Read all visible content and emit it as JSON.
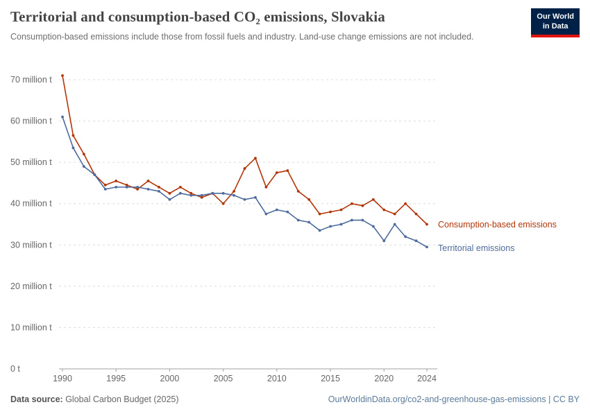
{
  "header": {
    "title": "Territorial and consumption-based CO₂ emissions, Slovakia",
    "subtitle": "Consumption-based emissions include those from fossil fuels and industry. Land-use change emissions are not included.",
    "logo": {
      "line1": "Our World",
      "line2": "in Data",
      "bg": "#002147",
      "accent": "#e3120b"
    }
  },
  "chart_data": {
    "type": "line",
    "title": "Territorial and consumption-based CO₂ emissions, Slovakia",
    "xlabel": "",
    "ylabel": "",
    "ylim": [
      0,
      70
    ],
    "grid": "dashed horizontal",
    "legend_position": "right-of-line-ends",
    "x": [
      1990,
      1991,
      1992,
      1993,
      1994,
      1995,
      1996,
      1997,
      1998,
      1999,
      2000,
      2001,
      2002,
      2003,
      2004,
      2005,
      2006,
      2007,
      2008,
      2009,
      2010,
      2011,
      2012,
      2013,
      2014,
      2015,
      2016,
      2017,
      2018,
      2019,
      2020,
      2021,
      2022,
      2023,
      2024
    ],
    "xticks": [
      1990,
      1995,
      2000,
      2005,
      2010,
      2015,
      2020,
      2024
    ],
    "xtick_labels": [
      "1990",
      "1995",
      "2000",
      "2005",
      "2010",
      "2015",
      "2020",
      "2024"
    ],
    "yticks": [
      0,
      10,
      20,
      30,
      40,
      50,
      60,
      70
    ],
    "ytick_labels": [
      "0 t",
      "10 million t",
      "20 million t",
      "30 million t",
      "40 million t",
      "50 million t",
      "60 million t",
      "70 million t"
    ],
    "unit": "million t",
    "series": [
      {
        "name": "Consumption-based emissions",
        "color": "#B13507",
        "values": [
          71,
          56.5,
          52,
          47,
          44.5,
          45.5,
          44.5,
          43.5,
          45.5,
          44,
          42.5,
          44,
          42.5,
          41.5,
          42.5,
          40,
          43,
          48.5,
          51,
          44,
          47.5,
          48,
          43,
          41,
          37.5,
          38,
          38.5,
          40,
          39.5,
          41,
          38.5,
          37.5,
          40,
          37.5,
          35
        ]
      },
      {
        "name": "Territorial emissions",
        "color": "#4C6A9C",
        "values": [
          61,
          53.5,
          49,
          47,
          43.5,
          44,
          44,
          44,
          43.5,
          43,
          41,
          42.5,
          42,
          42,
          42.5,
          42.5,
          42,
          41,
          41.5,
          37.5,
          38.5,
          38,
          36,
          35.5,
          33.5,
          34.5,
          35,
          36,
          36,
          34.5,
          31,
          35,
          32,
          31,
          29.5
        ]
      }
    ]
  },
  "footer": {
    "source_label": "Data source:",
    "source_value": " Global Carbon Budget (2025)",
    "link": "OurWorldinData.org/co2-and-greenhouse-gas-emissions | CC BY"
  }
}
